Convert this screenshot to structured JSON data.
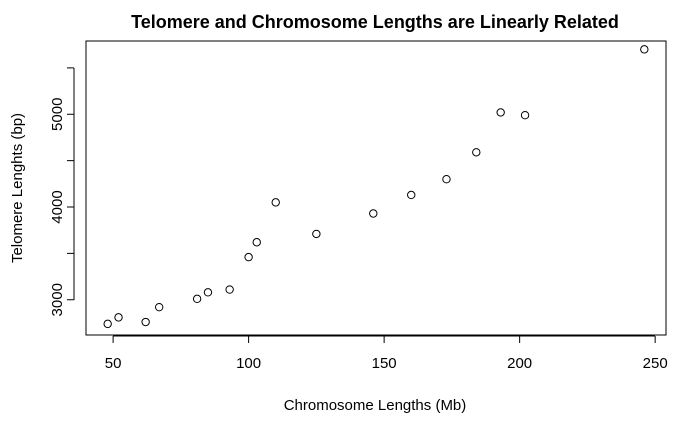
{
  "chart_data": {
    "type": "scatter",
    "title": "Telomere and Chromosome Lengths are Linearly Related",
    "xlabel": "Chromosome Lengths (Mb)",
    "ylabel": "Telomere Lenghts (bp)",
    "xlim": [
      40,
      254
    ],
    "ylim": [
      2620,
      5790
    ],
    "x_ticks": [
      50,
      100,
      150,
      200,
      250
    ],
    "y_ticks": [
      3000,
      4000,
      5000
    ],
    "y_minor_ticks": [
      3500,
      4500,
      5500
    ],
    "grid": false,
    "points": [
      {
        "x": 48,
        "y": 2740
      },
      {
        "x": 52,
        "y": 2810
      },
      {
        "x": 62,
        "y": 2760
      },
      {
        "x": 67,
        "y": 2920
      },
      {
        "x": 81,
        "y": 3010
      },
      {
        "x": 85,
        "y": 3080
      },
      {
        "x": 93,
        "y": 3110
      },
      {
        "x": 100,
        "y": 3460
      },
      {
        "x": 103,
        "y": 3620
      },
      {
        "x": 110,
        "y": 4050
      },
      {
        "x": 125,
        "y": 3710
      },
      {
        "x": 146,
        "y": 3930
      },
      {
        "x": 160,
        "y": 4130
      },
      {
        "x": 173,
        "y": 4300
      },
      {
        "x": 184,
        "y": 4590
      },
      {
        "x": 193,
        "y": 5020
      },
      {
        "x": 202,
        "y": 4990
      },
      {
        "x": 246,
        "y": 5700
      }
    ]
  }
}
